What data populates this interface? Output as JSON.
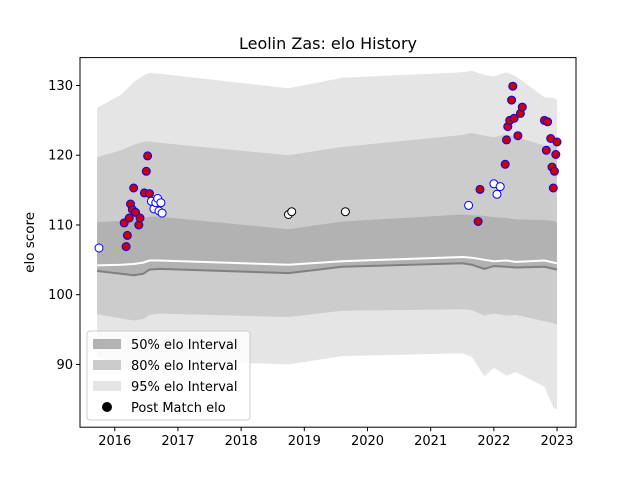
{
  "chart_data": {
    "type": "scatter",
    "title": "Leolin Zas: elo History",
    "xlabel": "",
    "ylabel": "elo score",
    "xlim": [
      2015.45,
      2023.3
    ],
    "ylim": [
      81,
      134
    ],
    "xticks": [
      2016,
      2017,
      2018,
      2019,
      2020,
      2021,
      2022,
      2023
    ],
    "yticks": [
      90,
      100,
      110,
      120,
      130
    ],
    "grid": false,
    "legend": {
      "position": "lower-left",
      "entries": [
        {
          "label": "50% elo Interval",
          "kind": "band50"
        },
        {
          "label": "80% elo Interval",
          "kind": "band80"
        },
        {
          "label": "95% elo Interval",
          "kind": "band95"
        },
        {
          "label": "Post Match elo",
          "kind": "point"
        }
      ]
    },
    "colors": {
      "band50": "#b2b2b2",
      "band80": "#cccccc",
      "band95": "#e5e5e5",
      "median_line": "#ffffff",
      "lower_line": "#808080",
      "point_face": "#ffffff",
      "point_face_win": "#cc0000",
      "point_edge": "#0000ff",
      "point_edge_neutral": "#000000"
    },
    "bands": {
      "x": [
        2015.72,
        2016.1,
        2016.3,
        2016.45,
        2016.55,
        2016.7,
        2018.75,
        2019.6,
        2021.5,
        2021.65,
        2021.85,
        2022.0,
        2022.2,
        2022.35,
        2022.8,
        2022.95,
        2023.0
      ],
      "q975": [
        126.8,
        128.7,
        130.5,
        131.4,
        131.8,
        131.7,
        129.6,
        131.1,
        131.9,
        132.1,
        131.5,
        131.3,
        131.9,
        131.3,
        128.3,
        128.2,
        127.9
      ],
      "q90": [
        119.7,
        120.7,
        121.5,
        121.9,
        122.0,
        121.8,
        120.0,
        121.2,
        122.9,
        123.2,
        122.8,
        122.6,
        123.0,
        122.6,
        121.4,
        121.5,
        121.3
      ],
      "q75": [
        110.4,
        110.6,
        110.8,
        110.9,
        111.2,
        111.2,
        109.4,
        110.5,
        111.5,
        111.4,
        111.3,
        111.1,
        111.0,
        110.8,
        110.7,
        110.6,
        110.3
      ],
      "q50": [
        104.2,
        104.3,
        104.4,
        104.6,
        104.9,
        104.9,
        104.3,
        104.8,
        105.4,
        105.3,
        105.0,
        104.8,
        104.9,
        104.7,
        104.9,
        104.6,
        104.5
      ],
      "q25": [
        103.4,
        103.0,
        102.8,
        103.0,
        103.6,
        103.7,
        103.1,
        104.0,
        104.5,
        104.3,
        103.7,
        104.1,
        104.0,
        103.9,
        104.0,
        103.7,
        103.6
      ],
      "q10": [
        97.2,
        96.6,
        96.3,
        96.5,
        97.1,
        97.3,
        96.8,
        97.7,
        97.9,
        97.8,
        97.0,
        97.3,
        97.0,
        97.1,
        96.2,
        95.9,
        95.7
      ],
      "q025": [
        91.2,
        89.6,
        89.4,
        89.9,
        90.5,
        90.6,
        90.0,
        91.2,
        91.6,
        91.1,
        88.3,
        89.5,
        88.4,
        88.9,
        86.8,
        83.7,
        83.6
      ]
    },
    "points": [
      {
        "x": 2015.75,
        "y": 106.7,
        "kind": "loss"
      },
      {
        "x": 2016.15,
        "y": 110.3,
        "kind": "win"
      },
      {
        "x": 2016.18,
        "y": 106.9,
        "kind": "win"
      },
      {
        "x": 2016.2,
        "y": 108.5,
        "kind": "win"
      },
      {
        "x": 2016.23,
        "y": 111.0,
        "kind": "win"
      },
      {
        "x": 2016.25,
        "y": 113.0,
        "kind": "win"
      },
      {
        "x": 2016.28,
        "y": 112.2,
        "kind": "win"
      },
      {
        "x": 2016.3,
        "y": 115.3,
        "kind": "win"
      },
      {
        "x": 2016.33,
        "y": 111.8,
        "kind": "win"
      },
      {
        "x": 2016.38,
        "y": 110.0,
        "kind": "win"
      },
      {
        "x": 2016.4,
        "y": 111.0,
        "kind": "win"
      },
      {
        "x": 2016.47,
        "y": 114.6,
        "kind": "win"
      },
      {
        "x": 2016.5,
        "y": 117.7,
        "kind": "win"
      },
      {
        "x": 2016.52,
        "y": 119.9,
        "kind": "win"
      },
      {
        "x": 2016.55,
        "y": 114.5,
        "kind": "win"
      },
      {
        "x": 2016.58,
        "y": 113.4,
        "kind": "loss"
      },
      {
        "x": 2016.62,
        "y": 112.3,
        "kind": "loss"
      },
      {
        "x": 2016.65,
        "y": 113.2,
        "kind": "loss"
      },
      {
        "x": 2016.68,
        "y": 113.8,
        "kind": "loss"
      },
      {
        "x": 2016.7,
        "y": 112.0,
        "kind": "loss"
      },
      {
        "x": 2016.73,
        "y": 113.2,
        "kind": "loss"
      },
      {
        "x": 2016.75,
        "y": 111.7,
        "kind": "loss"
      },
      {
        "x": 2018.75,
        "y": 111.5,
        "kind": "draw"
      },
      {
        "x": 2018.8,
        "y": 111.9,
        "kind": "draw"
      },
      {
        "x": 2019.65,
        "y": 111.9,
        "kind": "draw"
      },
      {
        "x": 2021.6,
        "y": 112.8,
        "kind": "loss"
      },
      {
        "x": 2021.75,
        "y": 110.5,
        "kind": "win"
      },
      {
        "x": 2021.78,
        "y": 115.1,
        "kind": "win"
      },
      {
        "x": 2022.0,
        "y": 115.9,
        "kind": "loss"
      },
      {
        "x": 2022.05,
        "y": 114.4,
        "kind": "loss"
      },
      {
        "x": 2022.1,
        "y": 115.5,
        "kind": "loss"
      },
      {
        "x": 2022.18,
        "y": 118.7,
        "kind": "win"
      },
      {
        "x": 2022.2,
        "y": 122.2,
        "kind": "win"
      },
      {
        "x": 2022.22,
        "y": 124.1,
        "kind": "win"
      },
      {
        "x": 2022.25,
        "y": 125.0,
        "kind": "win"
      },
      {
        "x": 2022.28,
        "y": 127.9,
        "kind": "win"
      },
      {
        "x": 2022.3,
        "y": 129.9,
        "kind": "win"
      },
      {
        "x": 2022.32,
        "y": 125.3,
        "kind": "win"
      },
      {
        "x": 2022.38,
        "y": 122.8,
        "kind": "win"
      },
      {
        "x": 2022.42,
        "y": 126.0,
        "kind": "win"
      },
      {
        "x": 2022.45,
        "y": 126.9,
        "kind": "win"
      },
      {
        "x": 2022.8,
        "y": 125.0,
        "kind": "win"
      },
      {
        "x": 2022.83,
        "y": 120.7,
        "kind": "win"
      },
      {
        "x": 2022.85,
        "y": 124.8,
        "kind": "win"
      },
      {
        "x": 2022.9,
        "y": 122.4,
        "kind": "win"
      },
      {
        "x": 2022.92,
        "y": 118.3,
        "kind": "win"
      },
      {
        "x": 2022.94,
        "y": 115.3,
        "kind": "win"
      },
      {
        "x": 2022.96,
        "y": 117.7,
        "kind": "win"
      },
      {
        "x": 2022.98,
        "y": 120.1,
        "kind": "win"
      },
      {
        "x": 2023.0,
        "y": 121.9,
        "kind": "win"
      }
    ]
  }
}
